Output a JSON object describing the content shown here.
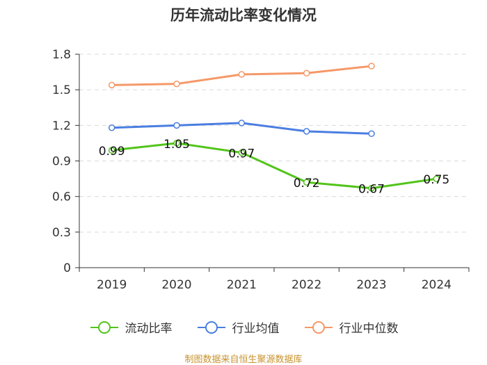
{
  "chart_data": {
    "type": "line",
    "title": "历年流动比率变化情况",
    "categories": [
      "2019",
      "2020",
      "2021",
      "2022",
      "2023",
      "2024"
    ],
    "ylim": [
      0,
      1.8
    ],
    "yticks": [
      "0",
      "0.3",
      "0.6",
      "0.9",
      "1.2",
      "1.5",
      "1.8"
    ],
    "grid": true,
    "legend_position": "bottom",
    "series": [
      {
        "name": "流动比率",
        "color": "#52c41a",
        "values": [
          0.99,
          1.05,
          0.97,
          0.72,
          0.67,
          0.75
        ],
        "labels": [
          "0.99",
          "1.05",
          "0.97",
          "0.72",
          "0.67",
          "0.75"
        ],
        "show_labels": true
      },
      {
        "name": "行业均值",
        "color": "#4a7ee0",
        "values": [
          1.18,
          1.2,
          1.22,
          1.15,
          1.13,
          null
        ],
        "show_labels": false
      },
      {
        "name": "行业中位数",
        "color": "#f59868",
        "values": [
          1.54,
          1.55,
          1.63,
          1.64,
          1.7,
          null
        ],
        "show_labels": false
      }
    ]
  },
  "source": "制图数据来自恒生聚源数据库"
}
